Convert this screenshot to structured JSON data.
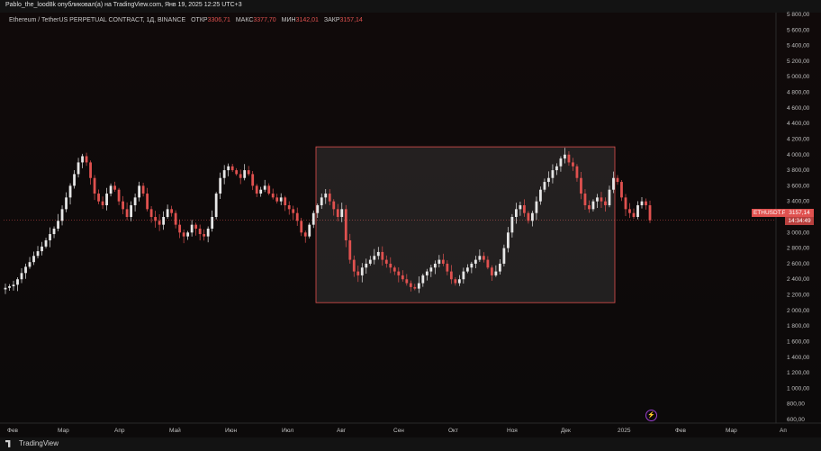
{
  "header": {
    "publish_text": "Pablo_the_lood8k опубликовал(а) на TradingView.com, Янв 19, 2025 12:25 UTC+3"
  },
  "legend": {
    "symbol": "Ethereum / TetherUS PERPETUAL CONTRACT, 1Д, BINANCE",
    "open_label": "ОТКР",
    "open_value": "3306,71",
    "high_label": "МАКС",
    "high_value": "3377,70",
    "low_label": "МИН",
    "low_value": "3142,01",
    "close_label": "ЗАКР",
    "close_value": "3157,14"
  },
  "price_badge": {
    "ticker": "ETHUSDT.P",
    "price": "3157,14",
    "countdown": "14:34:49"
  },
  "footer": {
    "brand": "TradingView"
  },
  "colors": {
    "up": "#e6e6e6",
    "down": "#e0514f",
    "box": "#e0514f",
    "background": "#0c0a0a"
  },
  "icons": {
    "bolt": "lightning-icon",
    "logo": "tradingview-logo-icon"
  },
  "chart_data": {
    "type": "candlestick",
    "y_axis_ticks": [
      "5 800,00",
      "5 600,00",
      "5 400,00",
      "5 200,00",
      "5 000,00",
      "4 800,00",
      "4 600,00",
      "4 400,00",
      "4 200,00",
      "4 000,00",
      "3 800,00",
      "3 600,00",
      "3 400,00",
      "3 200,00",
      "3 000,00",
      "2 800,00",
      "2 600,00",
      "2 400,00",
      "2 200,00",
      "2 000,00",
      "1 800,00",
      "1 600,00",
      "1 400,00",
      "1 200,00",
      "1 000,00",
      "800,00",
      "600,00"
    ],
    "ylim": [
      600,
      5800
    ],
    "x_axis_ticks": [
      "Фев",
      "Мар",
      "Апр",
      "Май",
      "Июн",
      "Июл",
      "Авг",
      "Сен",
      "Окт",
      "Ноя",
      "Дек",
      "2025",
      "Фев",
      "Мар",
      "Ап"
    ],
    "close_series": [
      2290,
      2310,
      2330,
      2400,
      2480,
      2560,
      2620,
      2700,
      2760,
      2820,
      2900,
      2980,
      3050,
      3150,
      3300,
      3450,
      3600,
      3750,
      3900,
      3980,
      3900,
      3700,
      3500,
      3400,
      3350,
      3500,
      3600,
      3550,
      3400,
      3300,
      3200,
      3350,
      3450,
      3600,
      3500,
      3300,
      3200,
      3150,
      3100,
      3200,
      3300,
      3250,
      3100,
      3000,
      2950,
      3000,
      3100,
      3050,
      2980,
      2950,
      3050,
      3200,
      3500,
      3700,
      3800,
      3850,
      3800,
      3750,
      3700,
      3800,
      3750,
      3600,
      3500,
      3550,
      3600,
      3500,
      3450,
      3400,
      3450,
      3350,
      3300,
      3250,
      3150,
      3000,
      2950,
      3100,
      3250,
      3350,
      3450,
      3500,
      3400,
      3300,
      3200,
      3300,
      2900,
      2650,
      2500,
      2450,
      2550,
      2600,
      2650,
      2700,
      2750,
      2650,
      2600,
      2550,
      2500,
      2450,
      2400,
      2350,
      2300,
      2280,
      2350,
      2450,
      2500,
      2550,
      2600,
      2650,
      2600,
      2500,
      2400,
      2350,
      2400,
      2500,
      2550,
      2600,
      2650,
      2700,
      2650,
      2550,
      2450,
      2500,
      2600,
      2800,
      3000,
      3200,
      3300,
      3350,
      3250,
      3150,
      3250,
      3400,
      3550,
      3650,
      3700,
      3800,
      3850,
      3950,
      4000,
      3900,
      3850,
      3700,
      3500,
      3350,
      3300,
      3400,
      3450,
      3400,
      3350,
      3550,
      3700,
      3650,
      3450,
      3300,
      3250,
      3200,
      3350,
      3400,
      3350,
      3157
    ],
    "highlight_box": {
      "x_start_month": "Июл",
      "price_top": 4100,
      "price_bottom": 2100
    }
  }
}
